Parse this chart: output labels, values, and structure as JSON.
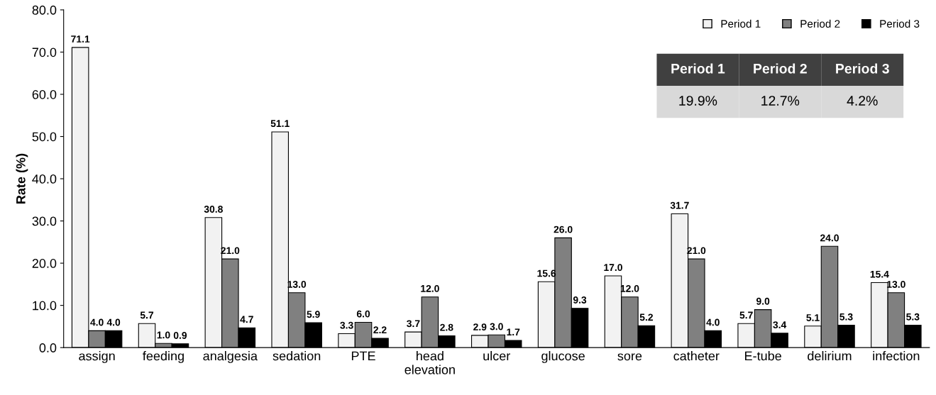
{
  "chart_data": {
    "type": "bar",
    "ylabel": "Rate (%)",
    "categories": [
      "assign",
      "feeding",
      "analgesia",
      "sedation",
      "PTE",
      "head\nelevation",
      "ulcer",
      "glucose",
      "sore",
      "catheter",
      "E-tube",
      "delirium",
      "infection"
    ],
    "series": [
      {
        "name": "Period 1",
        "color": "#f2f2f2",
        "values": [
          71.1,
          5.7,
          30.8,
          51.1,
          3.3,
          3.7,
          2.9,
          15.6,
          17.0,
          31.7,
          5.7,
          5.1,
          15.4
        ],
        "value_labels": [
          "71.1",
          "5.7",
          "30.8",
          "51.1",
          "3.3",
          "3.7",
          "2.9",
          "15.6",
          "17.0",
          "31.7",
          "5.7",
          "5.1",
          "15.4"
        ]
      },
      {
        "name": "Period 2",
        "color": "#808080",
        "values": [
          4.0,
          1.0,
          21.0,
          13.0,
          6.0,
          12.0,
          3.0,
          26.0,
          12.0,
          21.0,
          9.0,
          24.0,
          13.0
        ],
        "value_labels": [
          "4.0",
          "1.0",
          "21.0",
          "13.0",
          "6.0",
          "12.0",
          "3.0",
          "26.0",
          "12.0",
          "21.0",
          "9.0",
          "24.0",
          "13.0"
        ]
      },
      {
        "name": "Period 3",
        "color": "#000000",
        "values": [
          4.0,
          0.9,
          4.7,
          5.9,
          2.2,
          2.8,
          1.7,
          9.3,
          5.2,
          4.0,
          3.4,
          5.3,
          5.3
        ],
        "value_labels": [
          "4.0",
          "0.9",
          "4.7",
          "5.9",
          "2.2",
          "2.8",
          "1.7",
          "9.3",
          "5.2",
          "4.0",
          "3.4",
          "5.3",
          "5.3"
        ]
      }
    ],
    "ylim": [
      0,
      80
    ],
    "yticks": [
      {
        "value": 0,
        "label": "0.0"
      },
      {
        "value": 10,
        "label": "10.0"
      },
      {
        "value": 20,
        "label": "20.0"
      },
      {
        "value": 30,
        "label": "30.0"
      },
      {
        "value": 40,
        "label": "40.0"
      },
      {
        "value": 50,
        "label": "50.0"
      },
      {
        "value": 60,
        "label": "60.0"
      },
      {
        "value": 70,
        "label": "70.0"
      },
      {
        "value": 80,
        "label": "80.0"
      }
    ],
    "grid": false,
    "legend": "top right",
    "annotations": [
      "Period 1",
      "Period 2",
      "Period 3",
      "19.9%",
      "12.7%",
      "4.2%"
    ]
  }
}
